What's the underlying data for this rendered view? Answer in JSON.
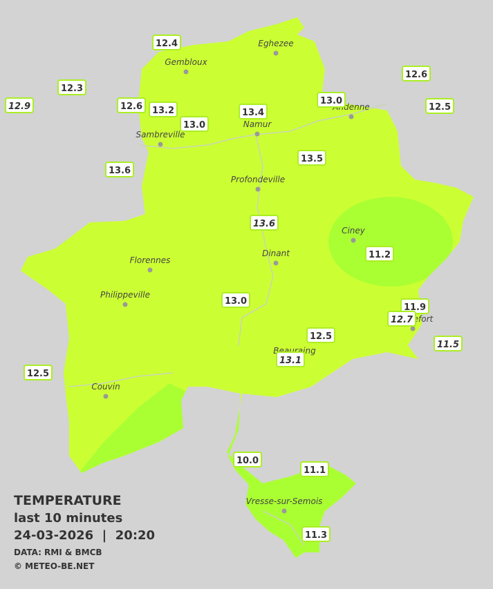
{
  "legend": {
    "title": "TEMPERATURE",
    "subtitle": "last 10 minutes",
    "datetime": "24-03-2026  |  20:20",
    "source": "DATA: RMI & BMCB",
    "copyright": "© METEO-BE.NET"
  },
  "towns": [
    "Eghezee",
    "Gembloux",
    "Andenne",
    "Namur",
    "Sambreville",
    "Profondeville",
    "Ciney",
    "Dinant",
    "Florennes",
    "Philippeville",
    "Rochefort",
    "Beauraing",
    "Couvin",
    "Vresse-sur-Semois"
  ],
  "stations": [
    "12.4",
    "12.3",
    "12.9",
    "12.6",
    "13.2",
    "13.0",
    "13.4",
    "13.0",
    "12.6",
    "12.5",
    "13.6",
    "13.5",
    "13.6",
    "11.2",
    "13.0",
    "11.9",
    "12.7",
    "11.5",
    "12.5",
    "13.1",
    "12.5",
    "10.0",
    "11.1",
    "11.3"
  ]
}
